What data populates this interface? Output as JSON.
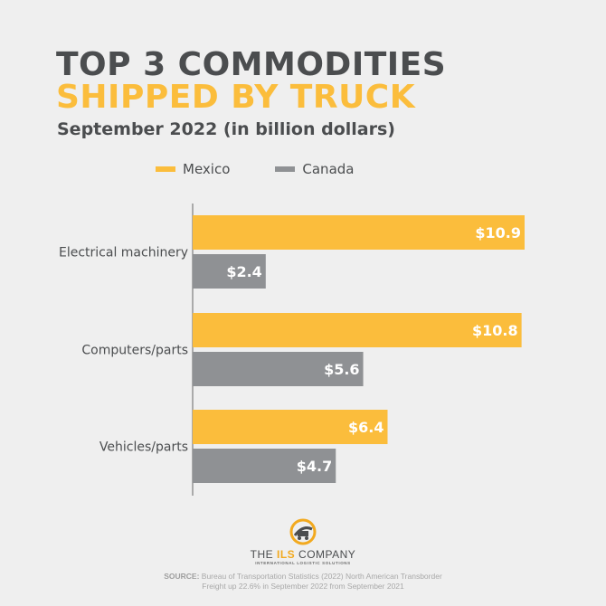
{
  "header": {
    "title_line1": "TOP 3 COMMODITIES",
    "title_line2": "SHIPPED BY TRUCK",
    "subtitle": "September 2022 (in billion dollars)"
  },
  "colors": {
    "mexico": "#fbbd3c",
    "canada": "#8f9194",
    "title_dark": "#4b4d4f",
    "background": "#efefef"
  },
  "chart_data": {
    "type": "bar",
    "orientation": "horizontal",
    "categories": [
      "Electrical machinery",
      "Computers/parts",
      "Vehicles/parts"
    ],
    "series": [
      {
        "name": "Mexico",
        "values": [
          10.9,
          10.8,
          6.4
        ],
        "labels": [
          "$10.9",
          "$10.8",
          "$6.4"
        ]
      },
      {
        "name": "Canada",
        "values": [
          2.4,
          5.6,
          4.7
        ],
        "labels": [
          "$2.4",
          "$5.6",
          "$4.7"
        ]
      }
    ],
    "xlim": [
      0,
      10.9
    ],
    "legend_position": "top",
    "grid": false
  },
  "footer": {
    "company_prefix": "THE",
    "company_highlight": "ILS",
    "company_suffix": "COMPANY",
    "tagline": "INTERNATIONAL LOGISTIC SOLUTIONS",
    "source_label": "SOURCE:",
    "source_text": "Bureau of Transportation Statistics (2022) North American Transborder",
    "source_note": "Freight up 22.6% in September 2022 from September 2021"
  }
}
